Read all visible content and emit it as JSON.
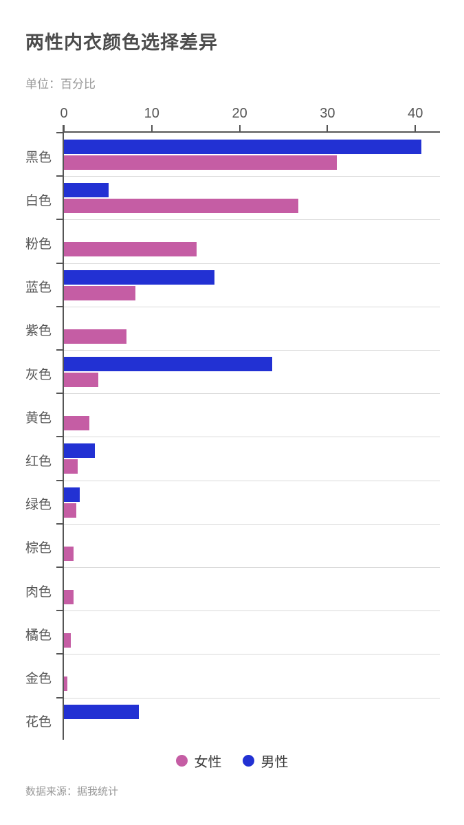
{
  "title": "两性内衣颜色选择差异",
  "subtitle": "单位：百分比",
  "footer": "数据来源：据我统计",
  "colors": {
    "female": "#c55da4",
    "male": "#2231d3",
    "axis": "#555555",
    "gridline": "#d9d9d9",
    "title_text": "#4c4c4c",
    "muted_text": "#999999"
  },
  "legend": {
    "items": [
      {
        "label": "女性",
        "color": "#c55da4"
      },
      {
        "label": "男性",
        "color": "#2231d3"
      }
    ]
  },
  "chart_data": {
    "type": "bar",
    "orientation": "horizontal",
    "title": "两性内衣颜色选择差异",
    "unit_label": "单位：百分比",
    "source_label": "数据来源：据我统计",
    "categories": [
      "黑色",
      "白色",
      "粉色",
      "蓝色",
      "紫色",
      "灰色",
      "黄色",
      "红色",
      "绿色",
      "棕色",
      "肉色",
      "橘色",
      "金色",
      "花色"
    ],
    "series": [
      {
        "name": "男性",
        "color": "#2231d3",
        "values": [
          40.7,
          5.1,
          0,
          17.1,
          0,
          23.7,
          0,
          3.5,
          1.8,
          0,
          0,
          0,
          0,
          8.5
        ]
      },
      {
        "name": "女性",
        "color": "#c55da4",
        "values": [
          31.1,
          26.7,
          15.1,
          8.1,
          7.1,
          3.9,
          2.9,
          1.6,
          1.4,
          1.1,
          1.1,
          0.8,
          0.4,
          0
        ]
      }
    ],
    "x_ticks": [
      0,
      10,
      20,
      30,
      40
    ],
    "xlim": [
      0,
      42.8
    ],
    "grid": true,
    "legend_position": "bottom",
    "note": "zero-value bars are not drawn"
  }
}
